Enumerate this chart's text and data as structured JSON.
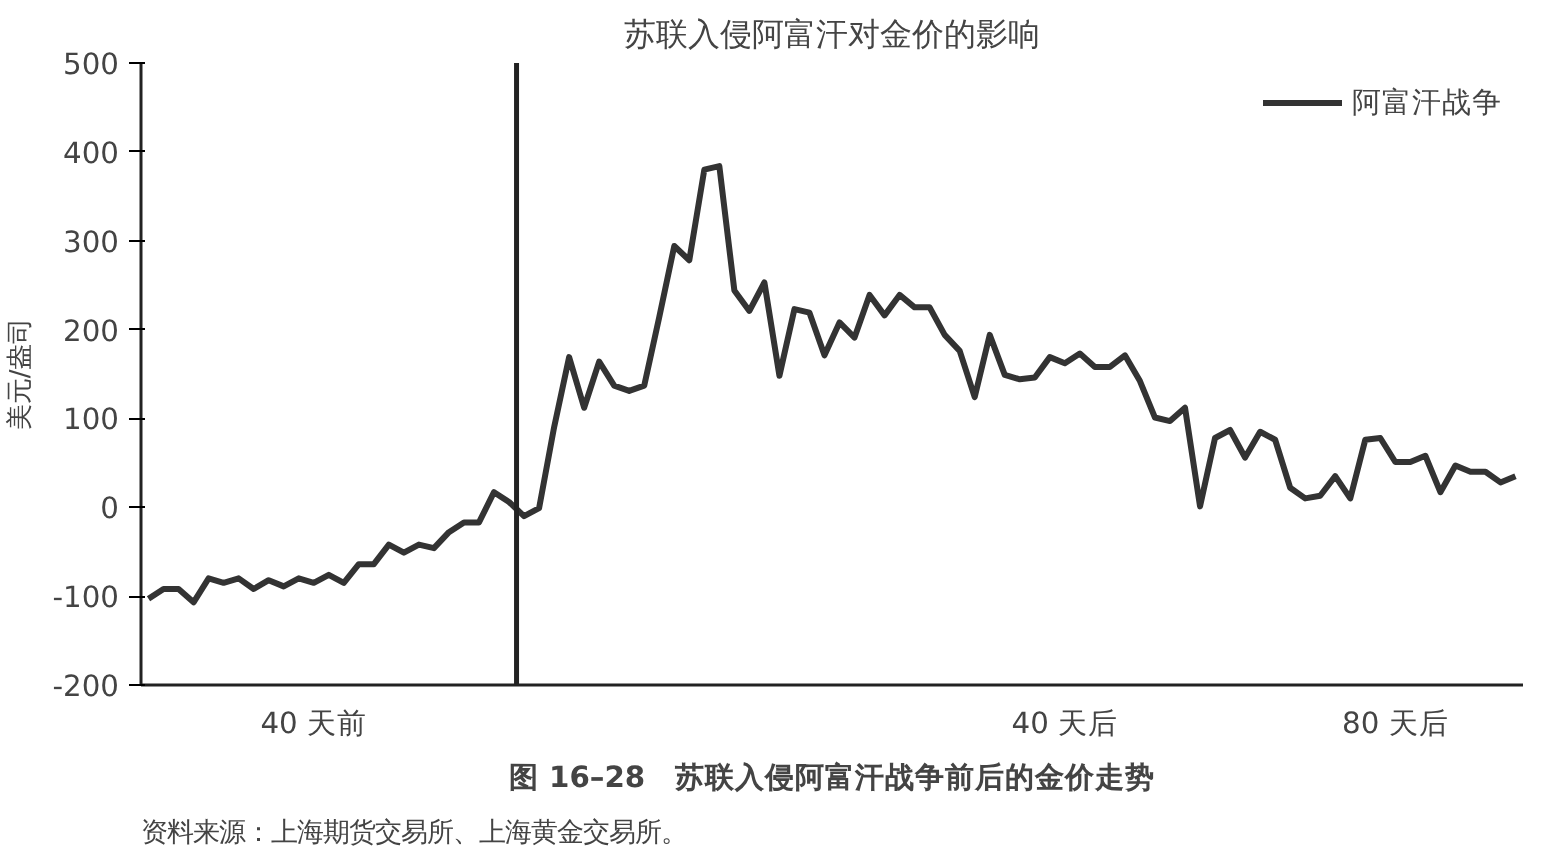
{
  "chart_data": {
    "type": "line",
    "title": "苏联入侵阿富汗对金价的影响",
    "ylabel": "美元/盎司",
    "categories": [
      null,
      null,
      null,
      null,
      null,
      null,
      null,
      null,
      null,
      null,
      null,
      "40 天前",
      null,
      null,
      null,
      null,
      null,
      null,
      null,
      null,
      null,
      null,
      null,
      null,
      null,
      null,
      null,
      null,
      null,
      null,
      null,
      null,
      null,
      null,
      null,
      null,
      null,
      null,
      null,
      null,
      null,
      null,
      null,
      null,
      null,
      null,
      null,
      null,
      null,
      null,
      null,
      null,
      null,
      null,
      null,
      null,
      null,
      null,
      null,
      null,
      null,
      "40 天后",
      null,
      null,
      null,
      null,
      null,
      null,
      null,
      null,
      null,
      null,
      null,
      null,
      null,
      null,
      null,
      null,
      null,
      null,
      null,
      null,
      null,
      "80 天后",
      null,
      null,
      null,
      null,
      null,
      null,
      null,
      null
    ],
    "series": [
      {
        "name": "阿富汗战争",
        "color": "#333333",
        "values": [
          -103,
          -92,
          -92,
          -107,
          -80,
          -85,
          -80,
          -92,
          -82,
          -89,
          -80,
          -85,
          -76,
          -85,
          -64,
          -64,
          -42,
          -51,
          -42,
          -46,
          -28,
          -17,
          -17,
          17,
          6,
          -10,
          -1,
          90,
          169,
          112,
          164,
          137,
          131,
          137,
          214,
          294,
          278,
          380,
          384,
          244,
          221,
          253,
          148,
          223,
          219,
          171,
          208,
          191,
          239,
          216,
          239,
          225,
          225,
          194,
          176,
          124,
          194,
          149,
          144,
          146,
          169,
          162,
          173,
          158,
          158,
          171,
          142,
          101,
          97,
          112,
          1,
          78,
          87,
          56,
          85,
          76,
          22,
          10,
          13,
          35,
          10,
          76,
          78,
          51,
          51,
          58,
          17,
          47,
          40,
          40,
          28,
          35
        ]
      }
    ],
    "ylim": [
      -200,
      500
    ],
    "yticks": [
      -200,
      -100,
      0,
      100,
      200,
      300,
      400,
      500
    ],
    "grid": false,
    "legend": "top right",
    "annotations": [
      "图 16–28　苏联入侵阿富汗战争前后的金价走势",
      "资料来源：上海期货交易所、上海黄金交易所。"
    ]
  }
}
